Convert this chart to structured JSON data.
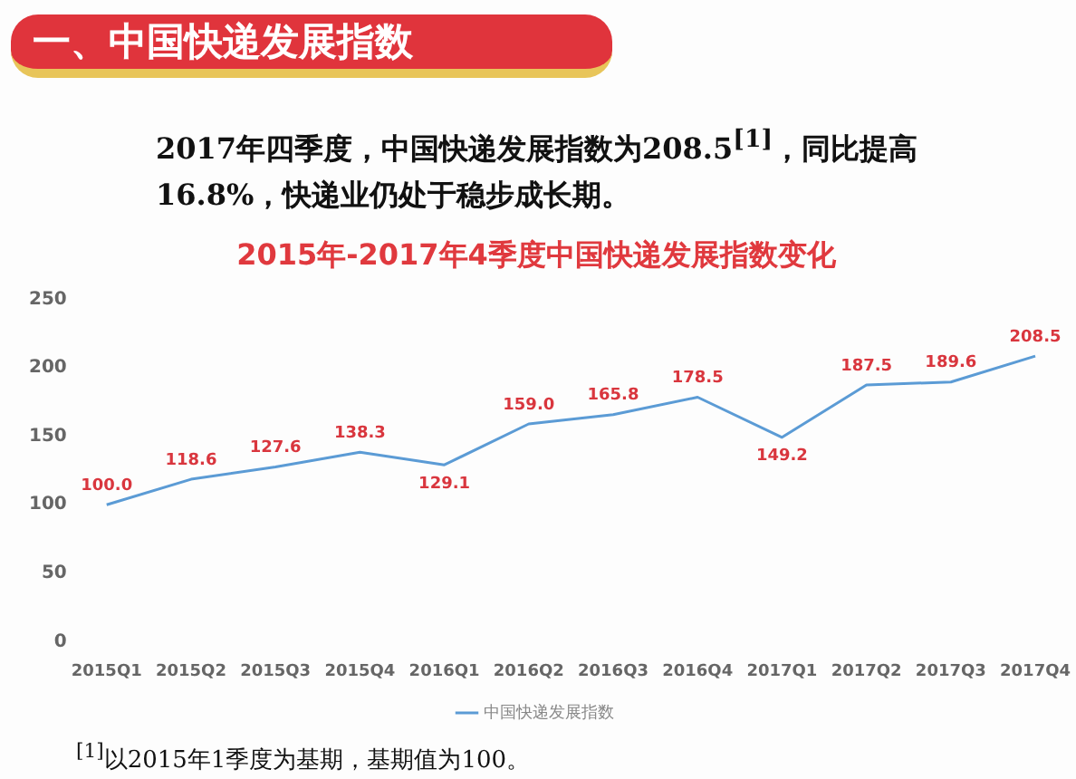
{
  "chart_data": {
    "type": "line",
    "title": "2015年-2017年4季度中国快递发展指数变化",
    "subtitle": "2017年四季度，中国快递发展指数为208.5$^{[1]}$，同比提高16.8%，快递业仍处于稳步成长期。",
    "annotations": [
      "一、中国快递发展指数",
      "$^{[1]}$以2015年1季度为基期，基期值为100。"
    ],
    "categories": [
      "2015Q1",
      "2015Q2",
      "2015Q3",
      "2015Q4",
      "2016Q1",
      "2016Q2",
      "2016Q3",
      "2016Q4",
      "2017Q1",
      "2017Q2",
      "2017Q3",
      "2017Q4"
    ],
    "series": [
      {
        "name": "中国快递发展指数",
        "color": "#5b9bd5",
        "values": [
          100.0,
          118.6,
          127.6,
          138.3,
          129.1,
          159.0,
          165.8,
          178.5,
          149.2,
          187.5,
          189.6,
          208.5
        ],
        "value_labels": [
          "100.0",
          "118.6",
          "127.6",
          "138.3",
          "129.1",
          "159.0",
          "165.8",
          "178.5",
          "149.2",
          "187.5",
          "189.6",
          "208.5"
        ]
      }
    ],
    "ylim": [
      0,
      250
    ],
    "yticks": [
      0,
      50,
      100,
      150,
      200,
      250
    ],
    "legend": "bottom",
    "grid": false,
    "marker": "none",
    "line_style": "solid"
  }
}
